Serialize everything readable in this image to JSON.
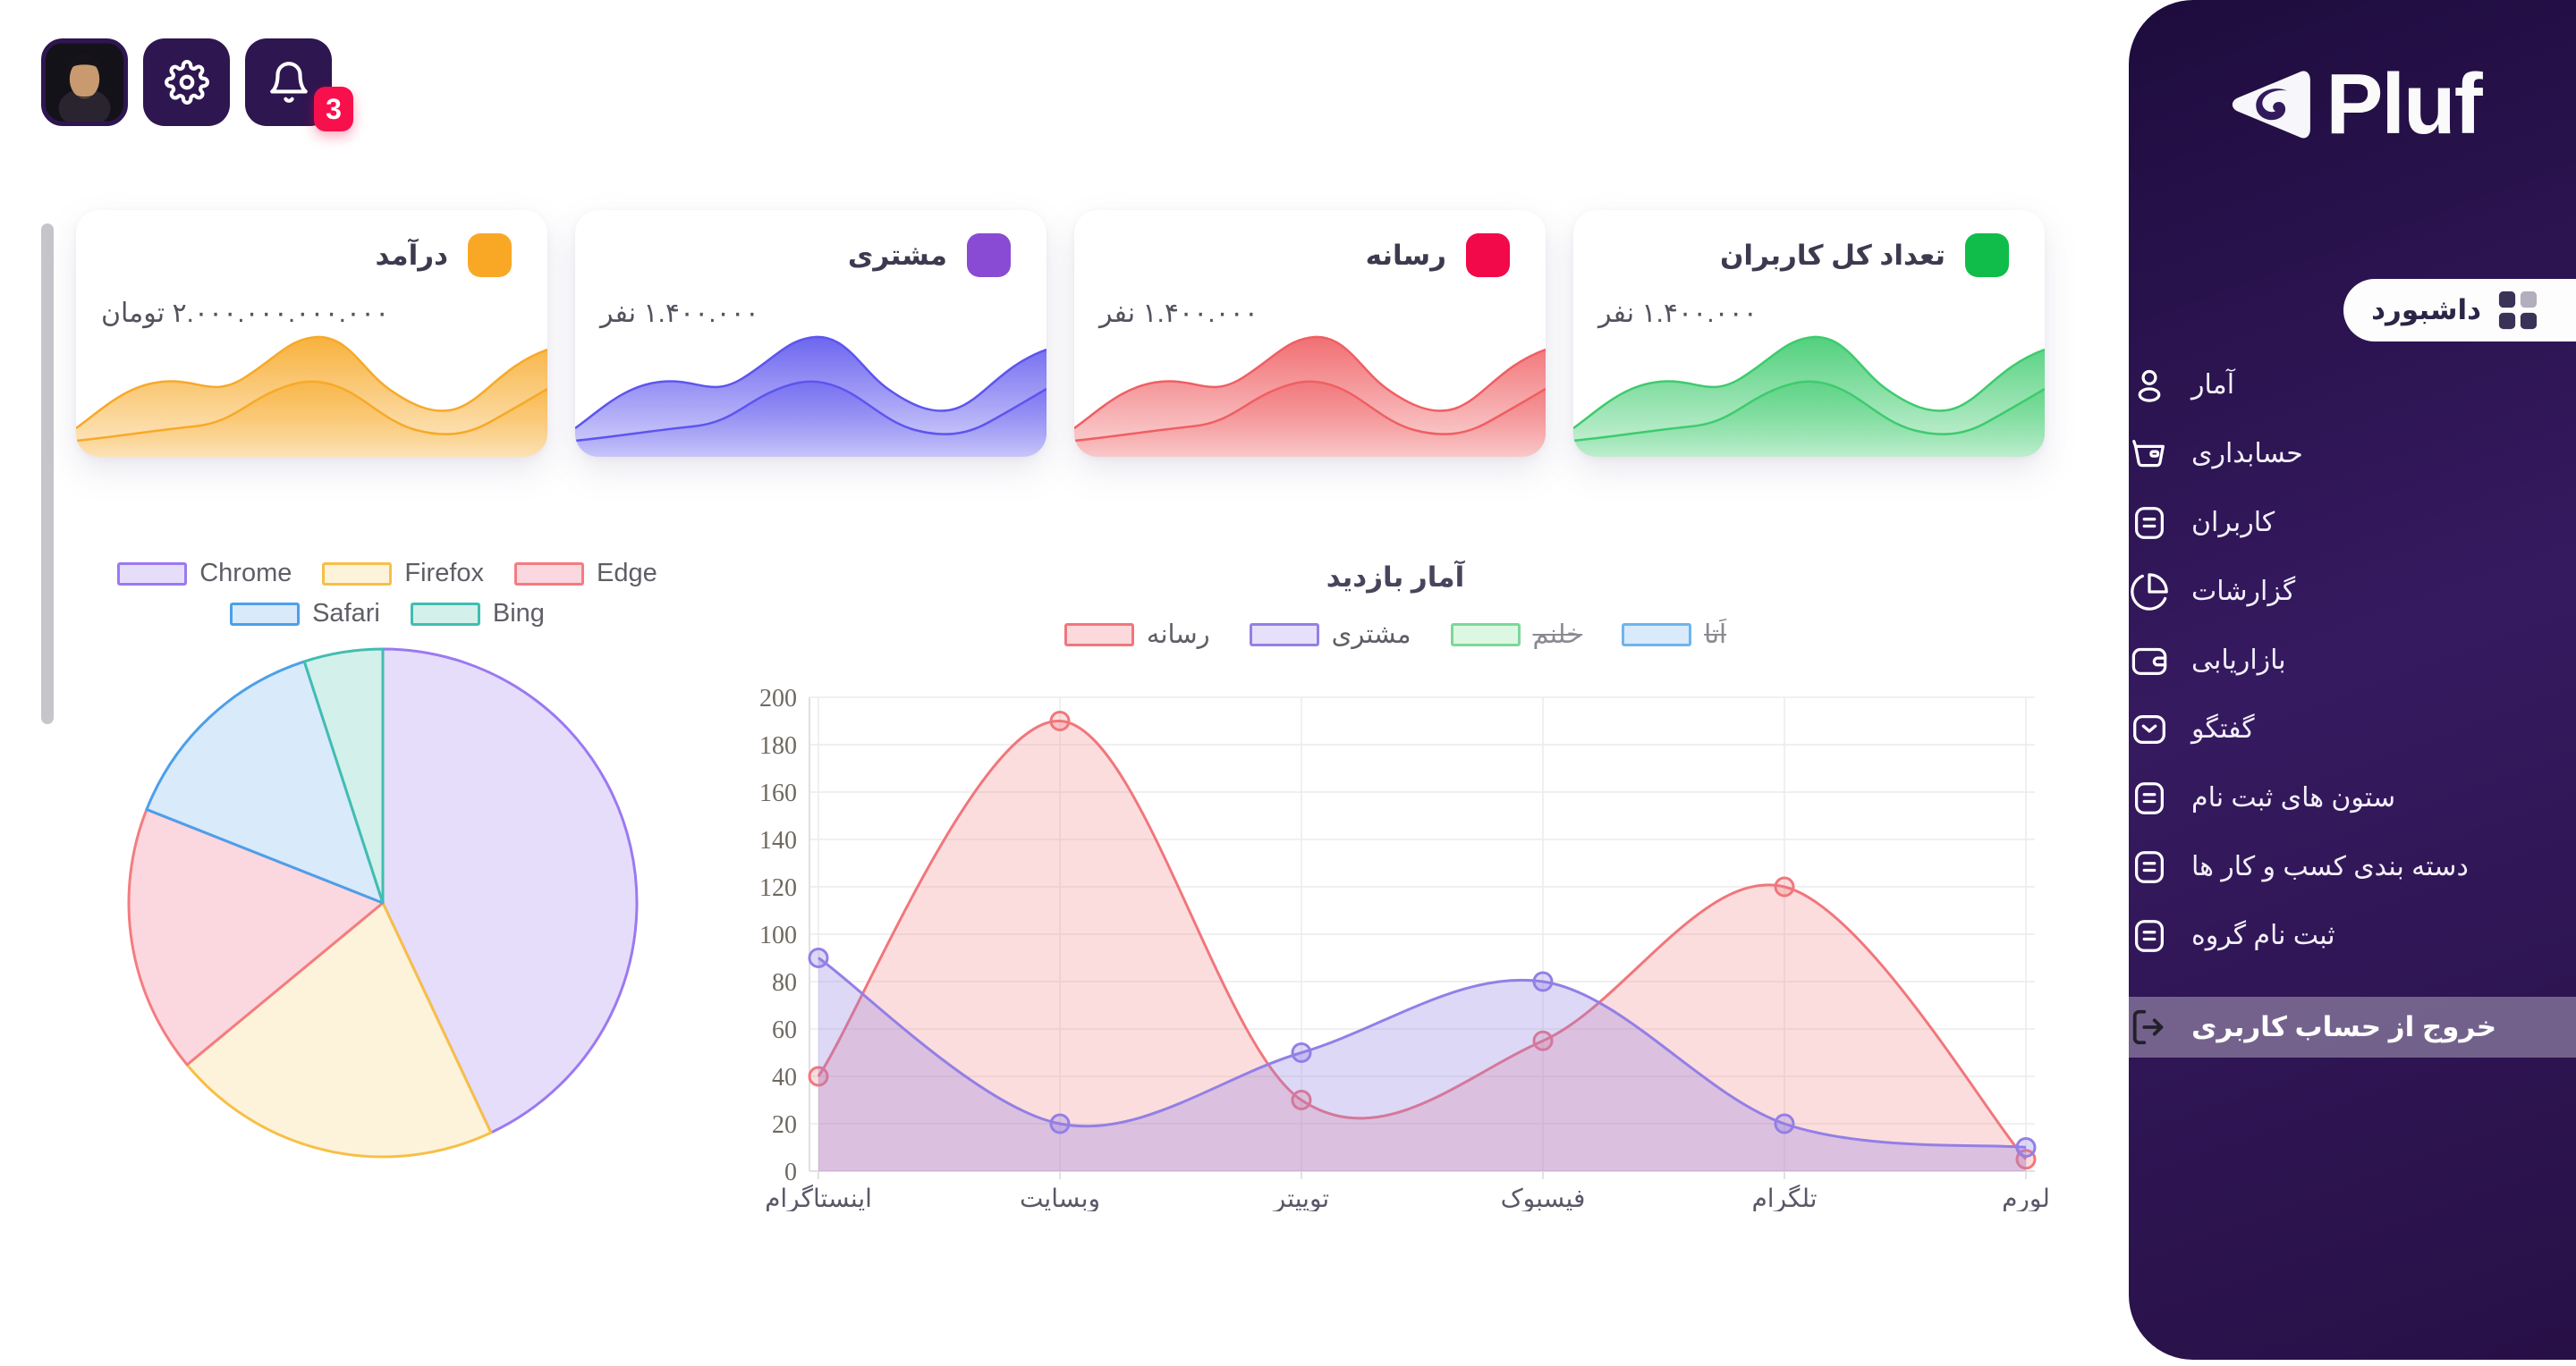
{
  "topbar": {
    "badge": "3",
    "icons": [
      "avatar",
      "settings-gear",
      "notification-bell"
    ]
  },
  "cards": [
    {
      "title": "درآمد",
      "value": "۲.۰۰۰.۰۰۰.۰۰۰.۰۰۰ تومان",
      "accent": "#f9a826",
      "wave": "#f7a928"
    },
    {
      "title": "مشتری",
      "value": "۱.۴۰۰.۰۰۰ نفر",
      "accent": "#8a4bd4",
      "wave": "#5d55ee"
    },
    {
      "title": "رسانه",
      "value": "۱.۴۰۰.۰۰۰ نفر",
      "accent": "#f2094a",
      "wave": "#ef5f63"
    },
    {
      "title": "تعداد کل کاربران",
      "value": "۱.۴۰۰.۰۰۰ نفر",
      "accent": "#10bd4a",
      "wave": "#3ecb6e"
    }
  ],
  "chart_data": [
    {
      "type": "pie",
      "legend_position": "top",
      "slices": [
        {
          "label": "Chrome",
          "value_percent": 43,
          "fill": "#e6ddfb",
          "border": "#9b79f1"
        },
        {
          "label": "Firefox",
          "value_percent": 21,
          "fill": "#fdf3da",
          "border": "#f7bf47"
        },
        {
          "label": "Edge",
          "value_percent": 17,
          "fill": "#fbd7df",
          "border": "#f47c80"
        },
        {
          "label": "Safari",
          "value_percent": 14,
          "fill": "#d9eafb",
          "border": "#4d9fe8"
        },
        {
          "label": "Bing",
          "value_percent": 5,
          "fill": "#d3f0ea",
          "border": "#41bdb2"
        }
      ]
    },
    {
      "type": "area",
      "title": "آمار بازدید",
      "categories": [
        "اینستاگرام",
        "وبسایت",
        "توییتر",
        "فیسبوک",
        "تلگرام",
        "لورم"
      ],
      "series": [
        {
          "name": "رسانه",
          "values": [
            40,
            190,
            30,
            55,
            120,
            5
          ],
          "border": "#f1767b",
          "fill": "rgba(241,118,123,0.25)",
          "legend_fill": "#fbd9dd",
          "hidden": false
        },
        {
          "name": "مشتری",
          "values": [
            90,
            20,
            50,
            80,
            20,
            10
          ],
          "border": "#937fe6",
          "fill": "rgba(147,127,230,0.30)",
          "legend_fill": "#e7e0fa",
          "hidden": false
        },
        {
          "name": "خلنم",
          "values": [],
          "border": "#7bd89a",
          "fill": "rgba(123,216,154,0.25)",
          "legend_fill": "#dcf8e2",
          "hidden": true
        },
        {
          "name": "اَتا",
          "values": [],
          "border": "#6fb4ec",
          "fill": "rgba(111,180,236,0.25)",
          "legend_fill": "#d8eafb",
          "hidden": true
        }
      ],
      "ylim": [
        0,
        200
      ],
      "ytick_step": 20,
      "grid": true,
      "legend_position": "top"
    }
  ],
  "sidebar": {
    "brand": "Pluf",
    "active_label": "داشبورد",
    "items": [
      {
        "label": "آمار",
        "icon": "user-icon"
      },
      {
        "label": "حسابداری",
        "icon": "cart-icon"
      },
      {
        "label": "کاربران",
        "icon": "list-icon"
      },
      {
        "label": "گزارشات",
        "icon": "pie-chart-icon"
      },
      {
        "label": "بازاریابی",
        "icon": "wallet-icon"
      },
      {
        "label": "گفتگو",
        "icon": "mail-icon"
      },
      {
        "label": "ستون های ثبت نام",
        "icon": "list-icon"
      },
      {
        "label": "دسته بندی کسب و کار ها",
        "icon": "list-icon"
      },
      {
        "label": "ثبت نام گروه",
        "icon": "list-icon"
      }
    ],
    "logout_label": "خروج از حساب کاربری",
    "colors": {
      "background_top": "#1e0c3d",
      "background_mid": "#361a60",
      "active_pill": "#fdfdfd",
      "logout_band": "rgba(255,255,255,0.33)"
    }
  }
}
